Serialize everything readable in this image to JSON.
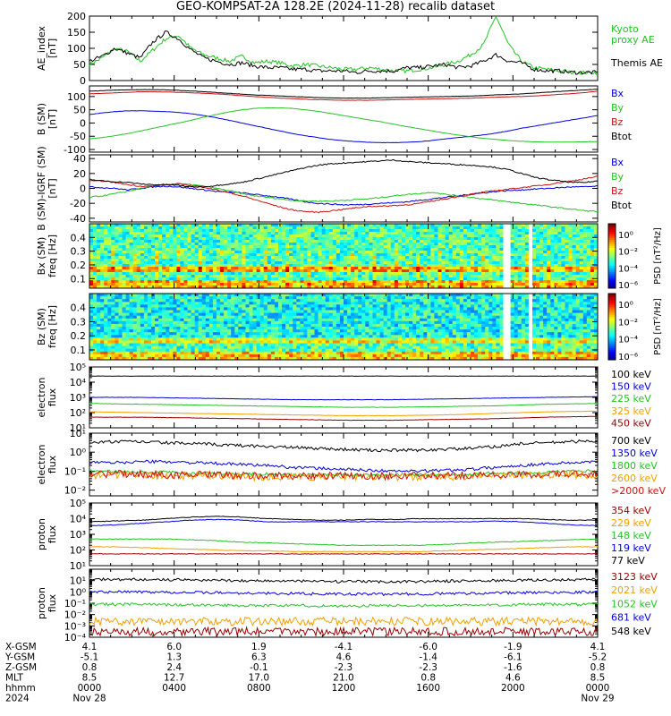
{
  "title": "GEO-KOMPSAT-2A 128.2E (2024-11-28) recalib dataset",
  "colors": {
    "black": "#000000",
    "blue": "#0000dd",
    "green": "#22c422",
    "red": "#cc1111",
    "orange": "#f0a000",
    "darkred": "#990000",
    "lightgreen": "#44dd44"
  },
  "chart_data": [
    {
      "type": "line",
      "panel": "ae",
      "ylabel": "AE_index\n[nT]",
      "ylim": [
        0,
        200
      ],
      "yticks": [
        0,
        50,
        100,
        150,
        200
      ],
      "series": [
        {
          "name": "Kyoto\nproxy AE",
          "color": "green",
          "values": [
            50,
            70,
            100,
            90,
            60,
            95,
            130,
            140,
            100,
            80,
            70,
            60,
            75,
            55,
            60,
            55,
            45,
            50,
            45,
            40,
            35,
            35,
            40,
            35,
            30,
            30,
            35,
            40,
            50,
            60,
            80,
            110,
            200,
            110,
            60,
            40,
            35,
            30,
            25,
            25,
            25
          ]
        },
        {
          "name": "Themis AE",
          "color": "black",
          "values": [
            60,
            75,
            100,
            85,
            70,
            120,
            150,
            130,
            95,
            70,
            60,
            50,
            55,
            45,
            40,
            40,
            35,
            35,
            30,
            30,
            30,
            25,
            30,
            30,
            30,
            40,
            40,
            45,
            50,
            40,
            45,
            60,
            80,
            60,
            55,
            35,
            30,
            30,
            25,
            25,
            25
          ]
        }
      ]
    },
    {
      "type": "line",
      "panel": "b",
      "ylabel": "B (SM)\n[nT]",
      "ylim": [
        -110,
        140
      ],
      "yticks": [
        -100,
        -50,
        0,
        50,
        100
      ],
      "series": [
        {
          "name": "Bx",
          "color": "blue",
          "values": [
            32,
            38,
            43,
            46,
            46,
            45,
            43,
            40,
            35,
            28,
            20,
            10,
            0,
            -10,
            -20,
            -30,
            -40,
            -48,
            -55,
            -62,
            -67,
            -70,
            -73,
            -74,
            -74,
            -73,
            -70,
            -66,
            -60,
            -55,
            -50,
            -45,
            -38,
            -30,
            -20,
            -12,
            -4,
            4,
            12,
            20,
            28
          ]
        },
        {
          "name": "By",
          "color": "green",
          "values": [
            -60,
            -55,
            -48,
            -40,
            -30,
            -20,
            -10,
            0,
            10,
            22,
            32,
            42,
            50,
            55,
            57,
            57,
            55,
            50,
            44,
            36,
            28,
            20,
            12,
            4,
            -5,
            -14,
            -22,
            -30,
            -38,
            -45,
            -52,
            -58,
            -62,
            -66,
            -69,
            -71,
            -72,
            -72,
            -72,
            -71,
            -70
          ]
        },
        {
          "name": "Bz",
          "color": "red",
          "values": [
            110,
            112,
            114,
            116,
            118,
            118,
            117,
            116,
            114,
            112,
            110,
            107,
            103,
            100,
            97,
            94,
            92,
            90,
            88,
            87,
            86,
            86,
            86,
            87,
            88,
            89,
            90,
            91,
            92,
            93,
            94,
            96,
            97,
            99,
            100,
            102,
            105,
            108,
            111,
            115,
            120
          ]
        },
        {
          "name": "Btot",
          "color": "black",
          "values": [
            120,
            122,
            124,
            125,
            126,
            126,
            125,
            123,
            121,
            118,
            115,
            112,
            109,
            106,
            104,
            102,
            100,
            98,
            96,
            95,
            94,
            94,
            94,
            95,
            96,
            97,
            98,
            99,
            100,
            101,
            102,
            104,
            106,
            108,
            110,
            113,
            116,
            119,
            122,
            125,
            128
          ]
        }
      ]
    },
    {
      "type": "line",
      "panel": "db",
      "ylabel": "B (SM)-IGRF (SM)\n[nT]",
      "ylim": [
        -45,
        45
      ],
      "yticks": [
        -40,
        -20,
        0,
        20,
        40
      ],
      "series": [
        {
          "name": "Bx",
          "color": "blue",
          "values": [
            2,
            1,
            0,
            -2,
            0,
            2,
            3,
            2,
            0,
            -2,
            -4,
            -5,
            -6,
            -8,
            -10,
            -12,
            -15,
            -18,
            -20,
            -21,
            -22,
            -22,
            -21,
            -20,
            -19,
            -18,
            -16,
            -14,
            -12,
            -10,
            -8,
            -6,
            -4,
            -3,
            -2,
            -1,
            0,
            1,
            2,
            2,
            3
          ]
        },
        {
          "name": "By",
          "color": "green",
          "values": [
            -12,
            -10,
            -7,
            -4,
            0,
            3,
            5,
            6,
            5,
            3,
            0,
            -3,
            -7,
            -10,
            -12,
            -14,
            -16,
            -17,
            -17,
            -17,
            -16,
            -15,
            -14,
            -12,
            -10,
            -8,
            -7,
            -5,
            -8,
            -10,
            -12,
            -14,
            -16,
            -18,
            -20,
            -22,
            -24,
            -26,
            -28,
            -30,
            -31
          ]
        },
        {
          "name": "Bz",
          "color": "red",
          "values": [
            10,
            10,
            8,
            5,
            3,
            3,
            5,
            6,
            4,
            2,
            -2,
            -6,
            -10,
            -15,
            -20,
            -25,
            -29,
            -31,
            -32,
            -30,
            -28,
            -26,
            -24,
            -24,
            -23,
            -22,
            -20,
            -17,
            -14,
            -11,
            -8,
            -5,
            -3,
            -1,
            1,
            3,
            5,
            8,
            10,
            13,
            16
          ]
        },
        {
          "name": "Btot",
          "color": "black",
          "values": [
            12,
            10,
            9,
            8,
            6,
            5,
            5,
            4,
            2,
            2,
            4,
            6,
            8,
            12,
            16,
            20,
            24,
            28,
            31,
            33,
            34,
            35,
            36,
            37,
            38,
            36,
            35,
            34,
            33,
            32,
            31,
            30,
            28,
            25,
            20,
            15,
            12,
            10,
            8,
            8,
            10
          ]
        }
      ]
    },
    {
      "type": "heatmap",
      "panel": "bx_spec",
      "ylabel": "Bx (SM)\nfreq [Hz]",
      "ylim": [
        0.03,
        0.5
      ],
      "yticks": [
        0.1,
        0.2,
        0.3,
        0.4
      ],
      "colorbar_label": "PSD [nT²/Hz]",
      "colorbar_ticks": [
        "10⁰",
        "10⁻²",
        "10⁻⁴",
        "10⁻⁶"
      ],
      "note": "band of enhanced power near 0.17 Hz and 0.2 Hz; data gaps near 2000 UT"
    },
    {
      "type": "heatmap",
      "panel": "bz_spec",
      "ylabel": "Bz (SM)\nfreq [Hz]",
      "ylim": [
        0.03,
        0.5
      ],
      "yticks": [
        0.1,
        0.2,
        0.3,
        0.4
      ],
      "colorbar_label": "PSD [nT²/Hz]",
      "colorbar_ticks": [
        "10⁰",
        "10⁻²",
        "10⁻⁴",
        "10⁻⁶"
      ]
    },
    {
      "type": "line",
      "panel": "e_low",
      "yscale": "log",
      "ylabel": "electron\nflux",
      "ylim_exp": [
        1,
        5
      ],
      "ytick_exps": [
        1,
        2,
        3,
        4,
        5
      ],
      "series": [
        {
          "name": "100 keV",
          "color": "black",
          "values": [
            4.4,
            4.4,
            4.4,
            4.4,
            4.4,
            4.4,
            4.4,
            4.4,
            4.4,
            4.4,
            4.4
          ]
        },
        {
          "name": "150 keV",
          "color": "blue",
          "values": [
            3.0,
            3.0,
            2.95,
            2.9,
            2.85,
            2.85,
            2.85,
            2.9,
            2.95,
            3.0,
            3.05
          ]
        },
        {
          "name": "225 keV",
          "color": "green",
          "values": [
            2.6,
            2.55,
            2.5,
            2.45,
            2.4,
            2.35,
            2.35,
            2.4,
            2.45,
            2.55,
            2.6
          ]
        },
        {
          "name": "325 keV",
          "color": "orange",
          "values": [
            2.05,
            2.0,
            1.95,
            1.9,
            1.85,
            1.8,
            1.8,
            1.85,
            1.95,
            2.05,
            2.1
          ]
        },
        {
          "name": "450 keV",
          "color": "darkred",
          "values": [
            1.7,
            1.7,
            1.65,
            1.6,
            1.55,
            1.5,
            1.5,
            1.55,
            1.6,
            1.7,
            1.75
          ]
        }
      ]
    },
    {
      "type": "line",
      "panel": "e_high",
      "yscale": "log",
      "ylabel": "electron\nflux",
      "ylim_exp": [
        -2.3,
        1
      ],
      "ytick_exps": [
        -2,
        -1,
        0,
        1
      ],
      "series": [
        {
          "name": "700 keV",
          "color": "black",
          "values": [
            0.5,
            0.55,
            0.55,
            0.5,
            0.45,
            0.4,
            0.35,
            0.3,
            0.25,
            0.2,
            0.15,
            0.1,
            0.1,
            0.1,
            0.15,
            0.2,
            0.3,
            0.45,
            0.5,
            0.55,
            0.6
          ]
        },
        {
          "name": "1350 keV",
          "color": "blue",
          "values": [
            -0.55,
            -0.55,
            -0.5,
            -0.5,
            -0.55,
            -0.6,
            -0.65,
            -0.7,
            -0.8,
            -0.85,
            -0.9,
            -0.95,
            -1.0,
            -1.0,
            -0.95,
            -0.9,
            -0.8,
            -0.7,
            -0.6,
            -0.55,
            -0.5
          ]
        },
        {
          "name": "1800 keV",
          "color": "green",
          "values": [
            -1.0,
            -1.0,
            -1.05,
            -1.05,
            -1.1,
            -1.1,
            -1.15,
            -1.15,
            -1.2,
            -1.2,
            -1.2,
            -1.2,
            -1.2,
            -1.2,
            -1.2,
            -1.15,
            -1.1,
            -1.1,
            -1.05,
            -1.0,
            -1.0
          ]
        },
        {
          "name": "2600 keV",
          "color": "orange",
          "values": [
            -1.2,
            -1.2,
            -1.2,
            -1.25,
            -1.25,
            -1.25,
            -1.3,
            -1.3,
            -1.3,
            -1.3,
            -1.3,
            -1.3,
            -1.3,
            -1.3,
            -1.3,
            -1.25,
            -1.25,
            -1.2,
            -1.2,
            -1.2,
            -1.2
          ]
        },
        {
          "name": ">2000 keV",
          "color": "red",
          "values": [
            -1.15,
            -1.15,
            -1.15,
            -1.2,
            -1.2,
            -1.2,
            -1.25,
            -1.25,
            -1.25,
            -1.25,
            -1.25,
            -1.25,
            -1.25,
            -1.25,
            -1.25,
            -1.2,
            -1.2,
            -1.2,
            -1.15,
            -1.15,
            -1.15
          ]
        }
      ]
    },
    {
      "type": "line",
      "panel": "p_low",
      "yscale": "log",
      "ylabel": "proton\nflux",
      "ylim_exp": [
        1,
        5
      ],
      "ytick_exps": [
        1,
        2,
        3,
        4,
        5
      ],
      "series": [
        {
          "name": "354 keV",
          "color": "darkred",
          "values": [
            1.75,
            1.75,
            1.75,
            1.75,
            1.75,
            1.75,
            1.75,
            1.75,
            1.75,
            1.75,
            1.75,
            1.75,
            1.75,
            1.75,
            1.75,
            1.75,
            1.75,
            1.75,
            1.75,
            1.75,
            1.75
          ]
        },
        {
          "name": "229 keV",
          "color": "orange",
          "values": [
            2.2,
            2.2,
            2.15,
            2.1,
            2.05,
            2.0,
            1.95,
            1.95,
            1.9,
            1.9,
            1.9,
            1.9,
            1.9,
            1.9,
            1.95,
            2.0,
            2.05,
            2.1,
            2.15,
            2.2,
            2.2
          ]
        },
        {
          "name": "148 keV",
          "color": "green",
          "values": [
            2.7,
            2.7,
            2.7,
            2.7,
            2.65,
            2.6,
            2.5,
            2.45,
            2.4,
            2.35,
            2.3,
            2.3,
            2.3,
            2.3,
            2.35,
            2.45,
            2.5,
            2.55,
            2.6,
            2.65,
            2.7
          ]
        },
        {
          "name": "119 keV",
          "color": "blue",
          "values": [
            3.55,
            3.6,
            3.7,
            3.8,
            3.9,
            3.95,
            3.9,
            3.8,
            3.8,
            3.8,
            3.8,
            3.8,
            3.8,
            3.8,
            3.8,
            3.8,
            3.85,
            3.8,
            3.7,
            3.6,
            3.55
          ]
        },
        {
          "name": "77 keV",
          "color": "black",
          "values": [
            3.8,
            3.85,
            3.9,
            4.0,
            4.1,
            4.15,
            4.1,
            4.0,
            3.95,
            3.9,
            3.9,
            3.95,
            3.95,
            4.0,
            4.0,
            4.0,
            4.0,
            4.0,
            3.95,
            3.9,
            3.9
          ]
        }
      ]
    },
    {
      "type": "line",
      "panel": "p_high",
      "yscale": "log",
      "ylabel": "proton\nflux",
      "ylim_exp": [
        -4,
        2
      ],
      "ytick_exps": [
        -4,
        -3,
        -2,
        -1,
        0,
        1
      ],
      "series": [
        {
          "name": "3123 keV",
          "color": "darkred",
          "values": [
            -3.5,
            -3.5,
            -3.5,
            -3.5,
            -3.5,
            -3.5,
            -3.5,
            -3.5,
            -3.5,
            -3.5,
            -3.5
          ]
        },
        {
          "name": "2021 keV",
          "color": "orange",
          "values": [
            -2.6,
            -2.6,
            -2.6,
            -2.6,
            -2.6,
            -2.6,
            -2.6,
            -2.6,
            -2.6,
            -2.6,
            -2.6
          ]
        },
        {
          "name": "1052 keV",
          "color": "green",
          "values": [
            -1.1,
            -1.1,
            -1.15,
            -1.2,
            -1.2,
            -1.25,
            -1.2,
            -1.2,
            -1.15,
            -1.1,
            -1.1
          ]
        },
        {
          "name": "681 keV",
          "color": "blue",
          "values": [
            0.0,
            0.0,
            -0.05,
            -0.1,
            -0.15,
            -0.2,
            -0.2,
            -0.15,
            -0.1,
            -0.05,
            0.0
          ]
        },
        {
          "name": "548 keV",
          "color": "black",
          "values": [
            1.1,
            1.1,
            1.05,
            1.0,
            0.95,
            0.9,
            0.9,
            0.95,
            1.0,
            1.05,
            1.1
          ]
        }
      ]
    }
  ],
  "x_axis": {
    "rows": [
      {
        "label": "X-GSM",
        "values": [
          "4.1",
          "6.0",
          "1.9",
          "-4.1",
          "-6.0",
          "-1.9",
          "4.1"
        ]
      },
      {
        "label": "Y-GSM",
        "values": [
          "-5.1",
          "1.3",
          "6.3",
          "4.6",
          "-1.4",
          "-6.1",
          "-5.2"
        ]
      },
      {
        "label": "Z-GSM",
        "values": [
          "0.8",
          "2.4",
          "-0.1",
          "-2.3",
          "-2.3",
          "-1.6",
          "0.8"
        ]
      },
      {
        "label": "MLT",
        "values": [
          "8.5",
          "12.7",
          "17.0",
          "21.0",
          "0.8",
          "4.6",
          "8.5"
        ]
      },
      {
        "label": "hhmm",
        "values": [
          "0000",
          "0400",
          "0800",
          "1200",
          "1600",
          "2000",
          "0000"
        ]
      },
      {
        "label": "2024",
        "values": [
          "Nov 28",
          "",
          "",
          "",
          "",
          "",
          "Nov 29"
        ]
      }
    ]
  }
}
